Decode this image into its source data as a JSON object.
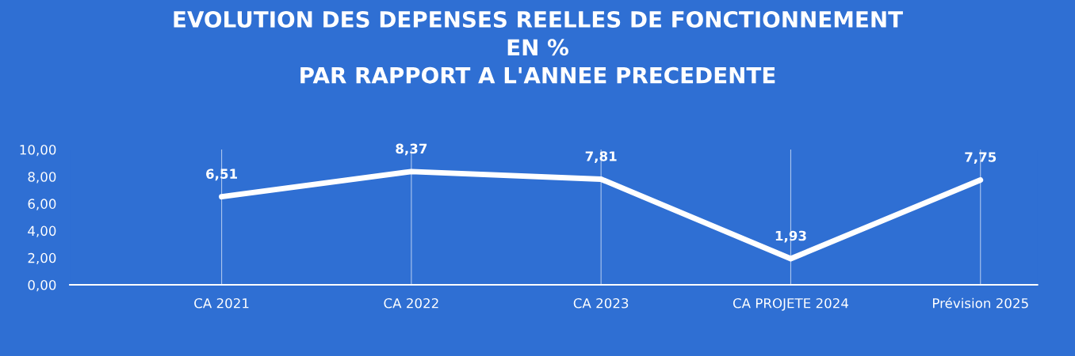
{
  "chart_data": {
    "type": "line",
    "title": "EVOLUTION DES DEPENSES REELLES DE FONCTIONNEMENT\nEN %\nPAR RAPPORT A L'ANNEE PRECEDENTE",
    "categories": [
      "CA 2021",
      "CA 2022",
      "CA 2023",
      "CA PROJETE 2024",
      "Prévision 2025"
    ],
    "series": [
      {
        "color": "#ffffff",
        "values": [
          6.51,
          8.37,
          7.81,
          1.93,
          7.75
        ]
      }
    ],
    "value_labels": [
      "6,51",
      "8,37",
      "7,81",
      "1,93",
      "7,75"
    ],
    "ylim": [
      0,
      10
    ],
    "yticks": [
      {
        "value": 0,
        "label": "0,00"
      },
      {
        "value": 2,
        "label": "2,00"
      },
      {
        "value": 4,
        "label": "4,00"
      },
      {
        "value": 6,
        "label": "6,00"
      },
      {
        "value": 8,
        "label": "8,00"
      },
      {
        "value": 10,
        "label": "10,00"
      }
    ],
    "grid": "x",
    "legend": false,
    "marker": "none",
    "line_style": "solid"
  }
}
